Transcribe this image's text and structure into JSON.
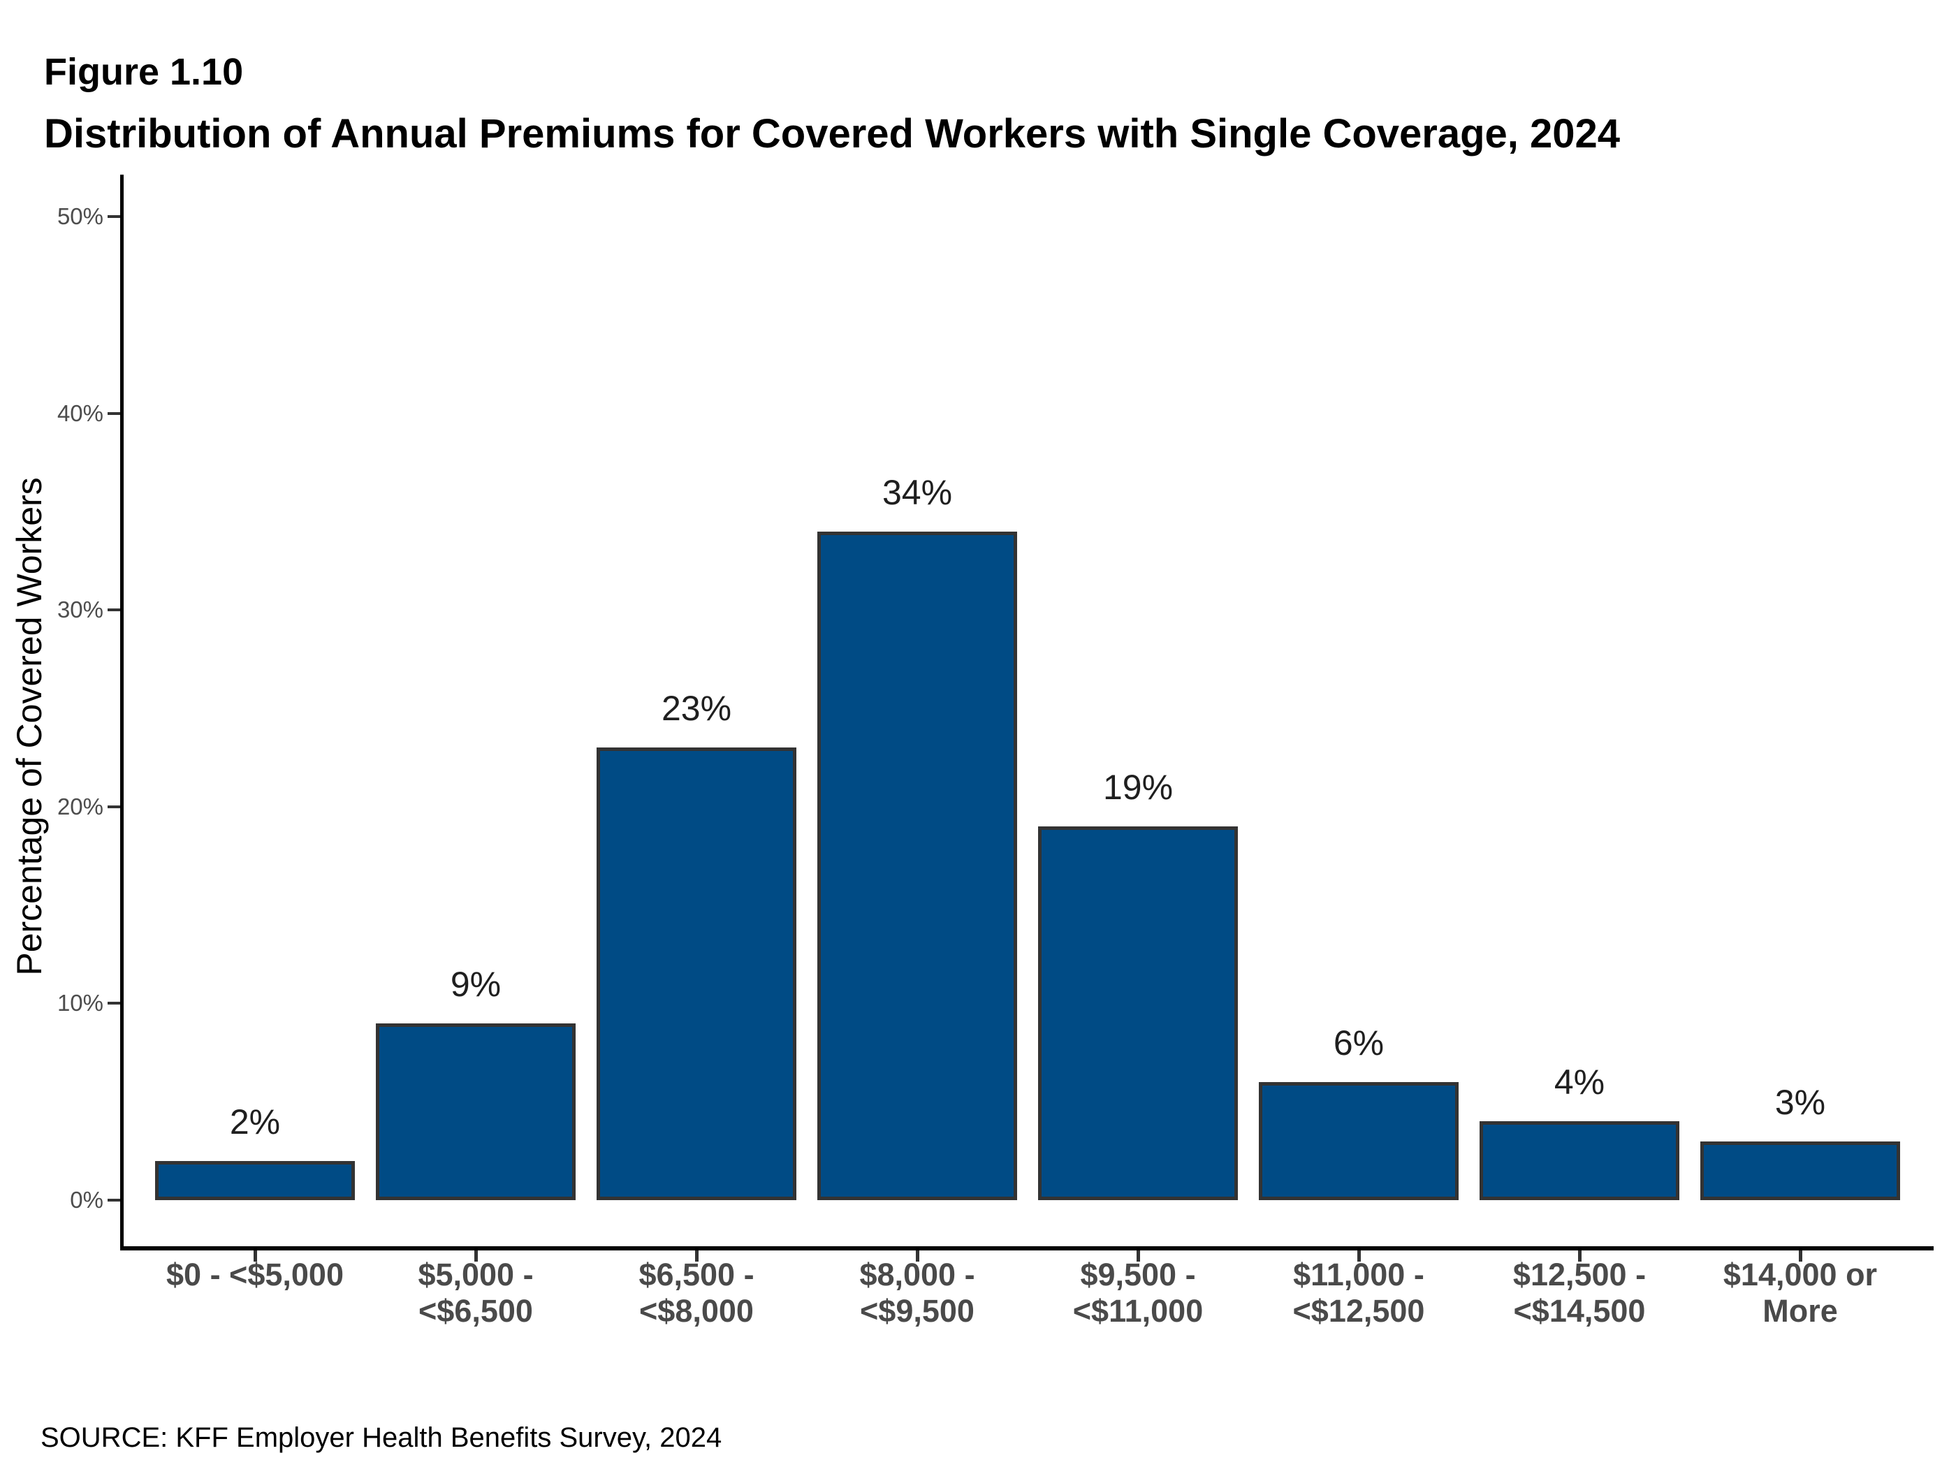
{
  "header": {
    "figure_label": "Figure 1.10",
    "title": "Distribution of Annual Premiums for Covered Workers with Single Coverage, 2024"
  },
  "axes": {
    "y_title": "Percentage of Covered Workers",
    "y_tick_labels": [
      "0%",
      "10%",
      "20%",
      "30%",
      "40%",
      "50%"
    ]
  },
  "footer": {
    "source": "SOURCE: KFF Employer Health Benefits Survey, 2024"
  },
  "colors": {
    "bar_fill": "#004B85",
    "bar_border": "#333333",
    "axis_line": "#000000",
    "tick_label": "#4D4D4D",
    "value_label": "#1F1F1F"
  },
  "chart_data": {
    "type": "bar",
    "title": "Distribution of Annual Premiums for Covered Workers with Single Coverage, 2024",
    "xlabel": "",
    "ylabel": "Percentage of Covered Workers",
    "ylim": [
      0,
      50
    ],
    "y_tick_step": 10,
    "grid": false,
    "legend": "none",
    "categories": [
      "$0 - <$5,000",
      "$5,000 - <$6,500",
      "$6,500 - <$8,000",
      "$8,000 - <$9,500",
      "$9,500 - <$11,000",
      "$11,000 - <$12,500",
      "$12,500 - <$14,500",
      "$14,000 or More"
    ],
    "category_lines": [
      [
        "$0 - <$5,000"
      ],
      [
        "$5,000 -",
        "<$6,500"
      ],
      [
        "$6,500 -",
        "<$8,000"
      ],
      [
        "$8,000 -",
        "<$9,500"
      ],
      [
        "$9,500 -",
        "<$11,000"
      ],
      [
        "$11,000 -",
        "<$12,500"
      ],
      [
        "$12,500 -",
        "<$14,500"
      ],
      [
        "$14,000 or",
        "More"
      ]
    ],
    "values": [
      2,
      9,
      23,
      34,
      19,
      6,
      4,
      3
    ],
    "value_labels": [
      "2%",
      "9%",
      "23%",
      "34%",
      "19%",
      "6%",
      "4%",
      "3%"
    ]
  }
}
